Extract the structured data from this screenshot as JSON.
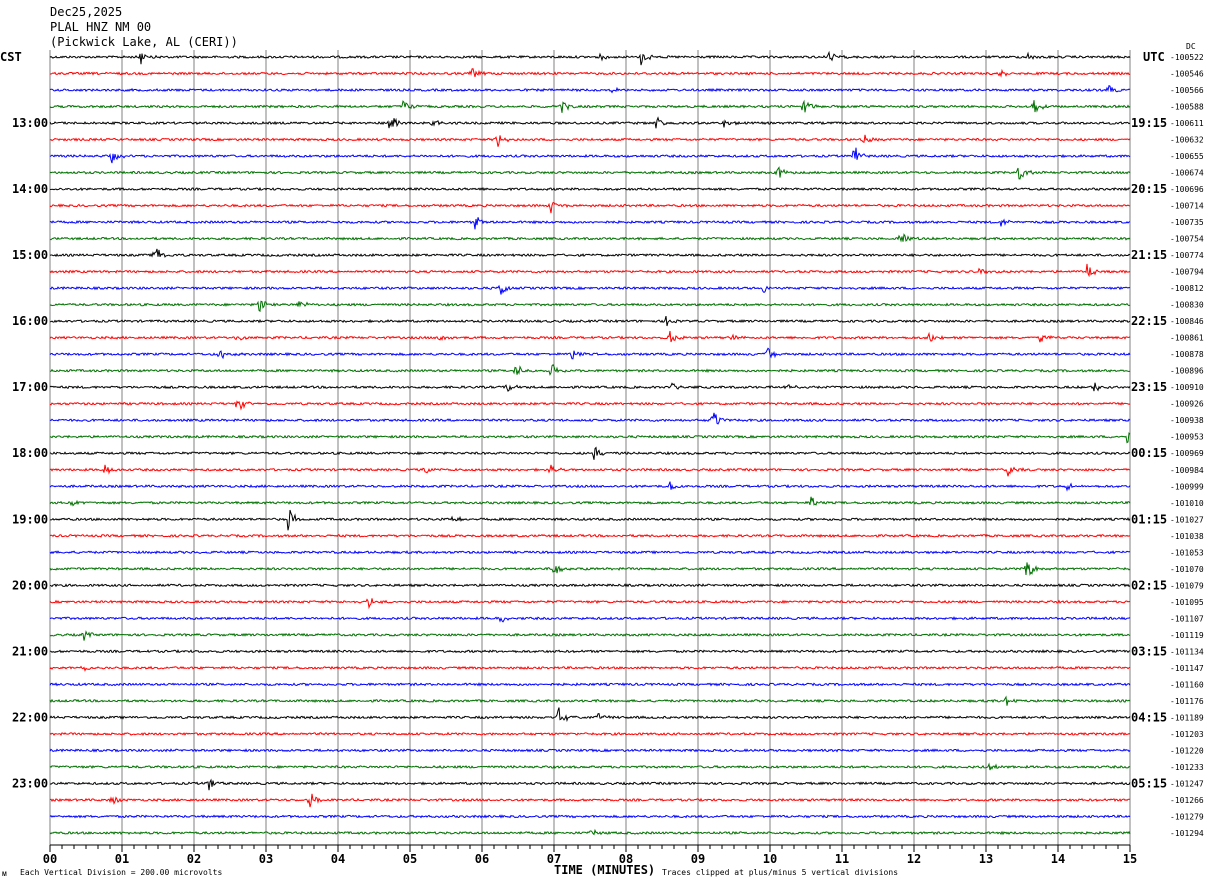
{
  "header": {
    "date": "Dec25,2025",
    "station": "PLAL HNZ NM 00",
    "location": "(Pickwick Lake, AL (CERI))"
  },
  "left_zone_label": "CST",
  "right_zone_label": "UTC",
  "dc_label": "DC",
  "footer": {
    "division_note": "Each Vertical Division =  200.00 microvolts",
    "xlabel": "TIME (MINUTES)",
    "clip_note": "Traces clipped at plus/minus 5 vertical divisions"
  },
  "colors": {
    "trace_cycle": [
      "#000000",
      "#ff0000",
      "#0000ff",
      "#007000"
    ],
    "grid": "#808080"
  },
  "chart_data": {
    "type": "line",
    "title": "PLAL HNZ NM 00 helicorder",
    "xlabel": "TIME (MINUTES)",
    "xlim": [
      0,
      15
    ],
    "x_ticks": [
      "00",
      "01",
      "02",
      "03",
      "04",
      "05",
      "06",
      "07",
      "08",
      "09",
      "10",
      "11",
      "12",
      "13",
      "14",
      "15"
    ],
    "left_hour_labels": [
      "13:00",
      "14:00",
      "15:00",
      "16:00",
      "17:00",
      "18:00",
      "19:00",
      "20:00",
      "21:00",
      "22:00",
      "23:00"
    ],
    "right_hour_labels": [
      "19:15",
      "20:15",
      "21:15",
      "22:15",
      "23:15",
      "00:15",
      "01:15",
      "02:15",
      "03:15",
      "04:15",
      "05:15"
    ],
    "trace_offsets": [
      "-100522",
      "-100546",
      "-100566",
      "-100588",
      "-100611",
      "-100632",
      "-100655",
      "-100674",
      "-100696",
      "-100714",
      "-100735",
      "-100754",
      "-100774",
      "-100794",
      "-100812",
      "-100830",
      "-100846",
      "-100861",
      "-100878",
      "-100896",
      "-100910",
      "-100926",
      "-100938",
      "-100953",
      "-100969",
      "-100984",
      "-100999",
      "-101010",
      "-101027",
      "-101038",
      "-101053",
      "-101070",
      "-101079",
      "-101095",
      "-101107",
      "-101119",
      "-101134",
      "-101147",
      "-101160",
      "-101176",
      "-101189",
      "-101203",
      "-101220",
      "-101233",
      "-101247",
      "-101266",
      "-101279",
      "-101294"
    ],
    "events": [
      [
        0,
        1.25,
        8
      ],
      [
        0,
        7.6,
        6
      ],
      [
        0,
        8.2,
        10
      ],
      [
        0,
        10.8,
        8
      ],
      [
        0,
        13.55,
        6
      ],
      [
        1,
        5.85,
        8
      ],
      [
        1,
        13.2,
        5
      ],
      [
        2,
        7.8,
        5
      ],
      [
        2,
        14.7,
        8
      ],
      [
        3,
        4.9,
        8
      ],
      [
        3,
        7.1,
        8
      ],
      [
        3,
        10.45,
        12
      ],
      [
        3,
        13.65,
        10
      ],
      [
        4,
        4.7,
        14
      ],
      [
        4,
        5.3,
        6
      ],
      [
        4,
        8.4,
        8
      ],
      [
        4,
        9.35,
        6
      ],
      [
        5,
        6.2,
        12
      ],
      [
        5,
        11.3,
        6
      ],
      [
        6,
        0.85,
        10
      ],
      [
        6,
        11.15,
        14
      ],
      [
        7,
        10.1,
        8
      ],
      [
        7,
        13.45,
        12
      ],
      [
        9,
        6.95,
        8
      ],
      [
        10,
        5.9,
        8
      ],
      [
        10,
        13.2,
        6
      ],
      [
        11,
        11.8,
        14
      ],
      [
        12,
        1.45,
        14
      ],
      [
        13,
        12.9,
        6
      ],
      [
        13,
        14.4,
        10
      ],
      [
        14,
        6.25,
        14
      ],
      [
        14,
        9.9,
        6
      ],
      [
        15,
        2.9,
        10
      ],
      [
        15,
        3.45,
        6
      ],
      [
        16,
        8.55,
        6
      ],
      [
        17,
        2.6,
        6
      ],
      [
        17,
        5.4,
        5
      ],
      [
        17,
        8.6,
        10
      ],
      [
        17,
        9.45,
        6
      ],
      [
        17,
        12.2,
        8
      ],
      [
        17,
        13.75,
        6
      ],
      [
        18,
        2.35,
        10
      ],
      [
        18,
        7.25,
        8
      ],
      [
        18,
        9.95,
        10
      ],
      [
        19,
        6.45,
        10
      ],
      [
        19,
        6.95,
        10
      ],
      [
        20,
        6.35,
        6
      ],
      [
        20,
        8.6,
        6
      ],
      [
        20,
        10.25,
        8
      ],
      [
        20,
        14.5,
        6
      ],
      [
        21,
        2.6,
        10
      ],
      [
        22,
        9.2,
        14
      ],
      [
        23,
        14.95,
        8
      ],
      [
        24,
        7.55,
        10
      ],
      [
        25,
        0.75,
        8
      ],
      [
        25,
        5.2,
        5
      ],
      [
        25,
        6.95,
        6
      ],
      [
        25,
        13.3,
        8
      ],
      [
        26,
        8.6,
        8
      ],
      [
        26,
        14.1,
        5
      ],
      [
        27,
        0.3,
        5
      ],
      [
        27,
        10.55,
        8
      ],
      [
        28,
        3.3,
        14
      ],
      [
        28,
        5.6,
        6
      ],
      [
        31,
        7.0,
        10
      ],
      [
        31,
        13.55,
        16
      ],
      [
        33,
        4.4,
        8
      ],
      [
        34,
        6.25,
        5
      ],
      [
        35,
        0.45,
        8
      ],
      [
        37,
        0.45,
        5
      ],
      [
        39,
        13.25,
        8
      ],
      [
        40,
        7.05,
        12
      ],
      [
        40,
        7.6,
        5
      ],
      [
        43,
        13.05,
        6
      ],
      [
        44,
        2.2,
        8
      ],
      [
        45,
        0.85,
        6
      ],
      [
        45,
        3.6,
        14
      ],
      [
        47,
        7.5,
        5
      ]
    ]
  }
}
